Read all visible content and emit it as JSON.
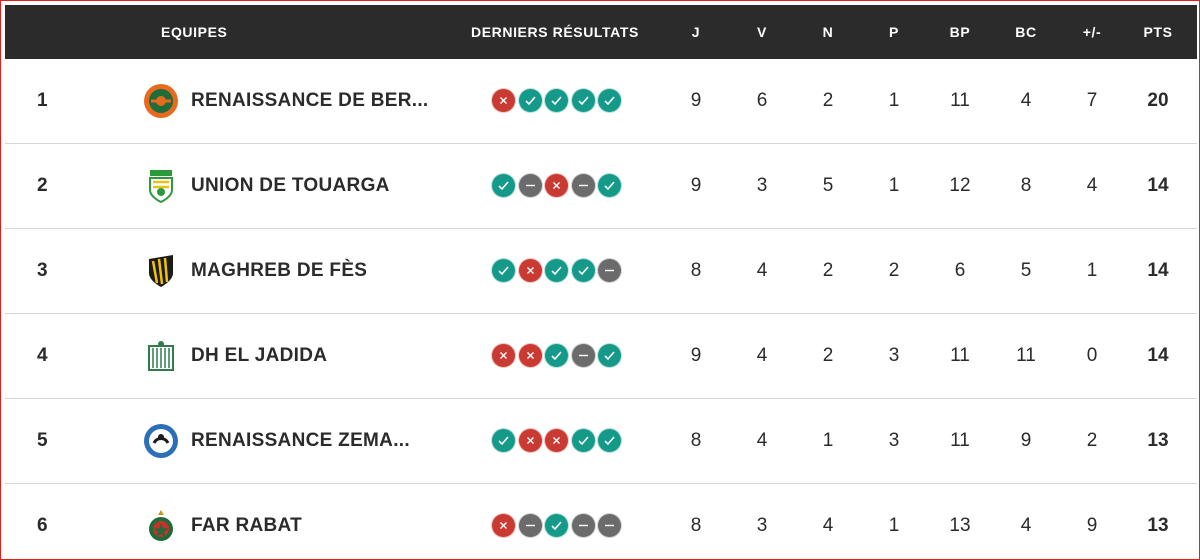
{
  "header": {
    "team": "EQUIPES",
    "form": "DERNIERS RÉSULTATS",
    "j": "J",
    "v": "V",
    "n": "N",
    "p": "P",
    "bp": "BP",
    "bc": "BC",
    "diff": "+/-",
    "pts": "PTS"
  },
  "colors": {
    "win": "#159a8a",
    "loss": "#c93a32",
    "draw": "#6b6b6b",
    "header_bg": "#2b2b2b"
  },
  "rows": [
    {
      "rank": "1",
      "team": "RENAISSANCE DE BER...",
      "logo": "rsb-crest-icon",
      "form": [
        "L",
        "W",
        "W",
        "W",
        "W"
      ],
      "j": "9",
      "v": "6",
      "n": "2",
      "p": "1",
      "bp": "11",
      "bc": "4",
      "diff": "7",
      "pts": "20"
    },
    {
      "rank": "2",
      "team": "UNION DE TOUARGA",
      "logo": "uts-crest-icon",
      "form": [
        "W",
        "D",
        "L",
        "D",
        "W"
      ],
      "j": "9",
      "v": "3",
      "n": "5",
      "p": "1",
      "bp": "12",
      "bc": "8",
      "diff": "4",
      "pts": "14"
    },
    {
      "rank": "3",
      "team": "MAGHREB DE FÈS",
      "logo": "mas-crest-icon",
      "form": [
        "W",
        "L",
        "W",
        "W",
        "D"
      ],
      "j": "8",
      "v": "4",
      "n": "2",
      "p": "2",
      "bp": "6",
      "bc": "5",
      "diff": "1",
      "pts": "14"
    },
    {
      "rank": "4",
      "team": "DH EL JADIDA",
      "logo": "dhj-crest-icon",
      "form": [
        "L",
        "L",
        "W",
        "D",
        "W"
      ],
      "j": "9",
      "v": "4",
      "n": "2",
      "p": "3",
      "bp": "11",
      "bc": "11",
      "diff": "0",
      "pts": "14"
    },
    {
      "rank": "5",
      "team": "RENAISSANCE ZEMA...",
      "logo": "rcz-crest-icon",
      "form": [
        "W",
        "L",
        "L",
        "W",
        "W"
      ],
      "j": "8",
      "v": "4",
      "n": "1",
      "p": "3",
      "bp": "11",
      "bc": "9",
      "diff": "2",
      "pts": "13"
    },
    {
      "rank": "6",
      "team": "FAR RABAT",
      "logo": "far-crest-icon",
      "form": [
        "L",
        "D",
        "W",
        "D",
        "D"
      ],
      "j": "8",
      "v": "3",
      "n": "4",
      "p": "1",
      "bp": "13",
      "bc": "4",
      "diff": "9",
      "pts": "13"
    }
  ]
}
